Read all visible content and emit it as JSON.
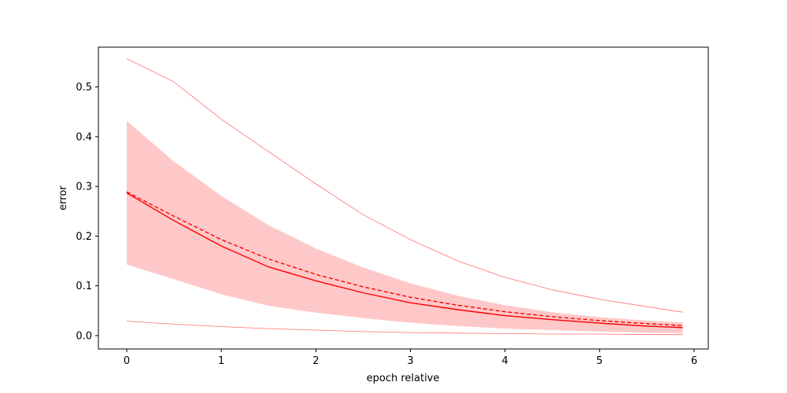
{
  "chart_data": {
    "type": "line",
    "title": "",
    "xlabel": "epoch relative",
    "ylabel": "error",
    "xlim": [
      -0.3,
      6.15
    ],
    "ylim": [
      -0.027,
      0.58
    ],
    "grid": false,
    "legend": "none",
    "xticks": [
      0,
      1,
      2,
      3,
      4,
      5,
      6
    ],
    "xtick_labels": [
      "0",
      "1",
      "2",
      "3",
      "4",
      "5",
      "6"
    ],
    "yticks": [
      0.0,
      0.1,
      0.2,
      0.3,
      0.4,
      0.5
    ],
    "ytick_labels": [
      "0.0",
      "0.1",
      "0.2",
      "0.3",
      "0.4",
      "0.5"
    ],
    "x": [
      0,
      0.5,
      1,
      1.5,
      2,
      2.5,
      3,
      3.5,
      4,
      4.5,
      5,
      5.5,
      5.88
    ],
    "series": [
      {
        "role": "median",
        "style": "solid",
        "color": "#ff0000",
        "values": [
          0.287,
          0.231,
          0.18,
          0.138,
          0.11,
          0.086,
          0.066,
          0.052,
          0.04,
          0.032,
          0.025,
          0.019,
          0.016
        ]
      },
      {
        "role": "mean",
        "style": "dashed",
        "color": "#ff0000",
        "values": [
          0.289,
          0.24,
          0.193,
          0.154,
          0.123,
          0.098,
          0.077,
          0.061,
          0.048,
          0.038,
          0.03,
          0.024,
          0.02
        ]
      },
      {
        "role": "band-upper",
        "color": "#ffc8c8",
        "values": [
          0.432,
          0.35,
          0.281,
          0.222,
          0.175,
          0.137,
          0.105,
          0.08,
          0.061,
          0.047,
          0.037,
          0.03,
          0.026
        ]
      },
      {
        "role": "band-lower",
        "color": "#ffc8c8",
        "values": [
          0.143,
          0.113,
          0.083,
          0.06,
          0.046,
          0.035,
          0.026,
          0.019,
          0.014,
          0.011,
          0.008,
          0.006,
          0.005
        ]
      },
      {
        "role": "outer-upper",
        "style": "thin",
        "color": "#ff7070",
        "values": [
          0.557,
          0.51,
          0.435,
          0.37,
          0.305,
          0.243,
          0.193,
          0.15,
          0.117,
          0.092,
          0.073,
          0.058,
          0.047
        ]
      },
      {
        "role": "outer-lower",
        "style": "thin",
        "color": "#ff7070",
        "values": [
          0.029,
          0.023,
          0.018,
          0.014,
          0.011,
          0.008,
          0.006,
          0.005,
          0.004,
          0.003,
          0.003,
          0.002,
          0.002
        ]
      }
    ]
  }
}
